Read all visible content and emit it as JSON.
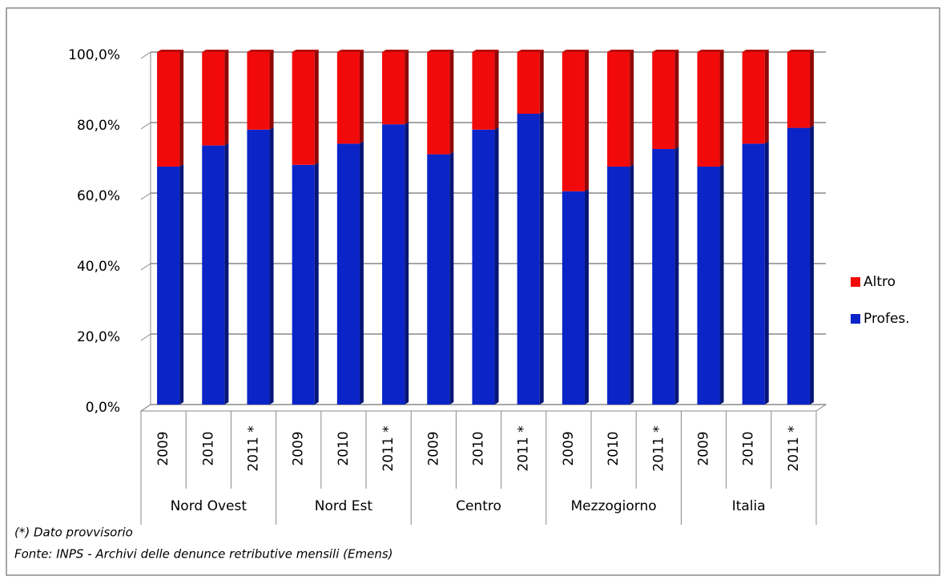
{
  "chart_data": {
    "type": "stacked_bar_3d",
    "categories": [
      "2009",
      "2010",
      "2011 *",
      "2009",
      "2010",
      "2011 *",
      "2009",
      "2010",
      "2011 *",
      "2009",
      "2010",
      "2011 *",
      "2009",
      "2010",
      "2011 *"
    ],
    "category_groups": [
      "Nord Ovest",
      "Nord Est",
      "Centro",
      "Mezzogiorno",
      "Italia"
    ],
    "series": [
      {
        "name": "Profes.",
        "color": "#0a24c8",
        "values": [
          67.5,
          73.5,
          78,
          68,
          74,
          79.5,
          71,
          78,
          82.5,
          60.5,
          67.5,
          72.5,
          67.5,
          74,
          78.5
        ]
      },
      {
        "name": "Altro",
        "color": "#f20a0a",
        "values": [
          32.5,
          26.5,
          22,
          32,
          26,
          20.5,
          29,
          22,
          17.5,
          39.5,
          32.5,
          27.5,
          32.5,
          26,
          21.5
        ]
      }
    ],
    "ylim": [
      0,
      100
    ],
    "yticks": [
      {
        "value": 0,
        "label": "0,0%"
      },
      {
        "value": 20,
        "label": "20,0%"
      },
      {
        "value": 40,
        "label": "40,0%"
      },
      {
        "value": 60,
        "label": "60,0%"
      },
      {
        "value": 80,
        "label": "80,0%"
      },
      {
        "value": 100,
        "label": "100,0%"
      }
    ],
    "grid": true,
    "legend": "right",
    "notes": [
      "(*) Dato provvisorio",
      "Fonte: INPS -  Archivi delle  denunce retributive mensili (Emens)"
    ]
  }
}
